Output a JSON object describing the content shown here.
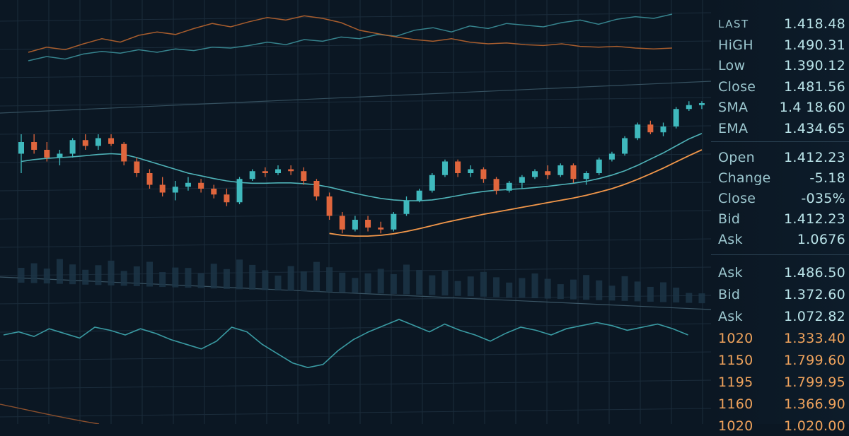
{
  "quote_panel": {
    "summary": [
      {
        "label": "LAST",
        "value": "1.418.48"
      },
      {
        "label": "HiGH",
        "value": "1.490.31"
      },
      {
        "label": "Low",
        "value": "1.390.12"
      },
      {
        "label": "Close",
        "value": "1.481.56"
      },
      {
        "label": "SMA",
        "value": "1.4 18.60"
      },
      {
        "label": "EMA",
        "value": "1.434.65"
      }
    ],
    "stats": [
      {
        "label": "Open",
        "value": "1.412.23"
      },
      {
        "label": "Change",
        "value": "-5.18"
      },
      {
        "label": "Close",
        "value": "-035%"
      },
      {
        "label": "Bid",
        "value": "1.412.23"
      },
      {
        "label": "Ask",
        "value": "1.0676"
      }
    ],
    "book": [
      {
        "label": "Ask",
        "value": "1.486.50"
      },
      {
        "label": "Bid",
        "value": "1.372.60"
      },
      {
        "label": "Ask",
        "value": "1.072.82"
      },
      {
        "label": "1020",
        "value": "1.333.40"
      },
      {
        "label": "1150",
        "value": "1.799.60"
      },
      {
        "label": "1195",
        "value": "1.799.95"
      },
      {
        "label": "1160",
        "value": "1.366.90"
      },
      {
        "label": "1020",
        "value": "1.020.00"
      }
    ]
  },
  "colors": {
    "background": "#0b1723",
    "up": "#3fb9bd",
    "down": "#e0663d",
    "sma": "#4fb3b8",
    "ema": "#f2974a",
    "grid": "#1b2c3b",
    "label_teal": "#9cc7cf",
    "value_teal": "#b9e3e8",
    "label_orange": "#f0a35c"
  },
  "chart_data": {
    "type": "candlestick",
    "title": "",
    "xlabel": "",
    "ylabel": "",
    "grid": true,
    "candles": [
      {
        "o": 1.5,
        "h": 2.0,
        "l": 1.0,
        "c": 1.8
      },
      {
        "o": 1.8,
        "h": 2.0,
        "l": 1.5,
        "c": 1.6
      },
      {
        "o": 1.6,
        "h": 1.8,
        "l": 1.3,
        "c": 1.4
      },
      {
        "o": 1.4,
        "h": 1.6,
        "l": 1.2,
        "c": 1.5
      },
      {
        "o": 1.5,
        "h": 1.9,
        "l": 1.4,
        "c": 1.85
      },
      {
        "o": 1.85,
        "h": 2.0,
        "l": 1.6,
        "c": 1.7
      },
      {
        "o": 1.7,
        "h": 2.0,
        "l": 1.6,
        "c": 1.9
      },
      {
        "o": 1.9,
        "h": 2.0,
        "l": 1.7,
        "c": 1.75
      },
      {
        "o": 1.75,
        "h": 1.8,
        "l": 1.2,
        "c": 1.3
      },
      {
        "o": 1.3,
        "h": 1.4,
        "l": 0.9,
        "c": 1.0
      },
      {
        "o": 1.0,
        "h": 1.1,
        "l": 0.6,
        "c": 0.7
      },
      {
        "o": 0.7,
        "h": 0.9,
        "l": 0.4,
        "c": 0.5
      },
      {
        "o": 0.5,
        "h": 0.8,
        "l": 0.3,
        "c": 0.65
      },
      {
        "o": 0.65,
        "h": 0.9,
        "l": 0.55,
        "c": 0.75
      },
      {
        "o": 0.75,
        "h": 0.85,
        "l": 0.5,
        "c": 0.6
      },
      {
        "o": 0.6,
        "h": 0.7,
        "l": 0.35,
        "c": 0.45
      },
      {
        "o": 0.45,
        "h": 0.6,
        "l": 0.15,
        "c": 0.25
      },
      {
        "o": 0.25,
        "h": 0.9,
        "l": 0.2,
        "c": 0.85
      },
      {
        "o": 0.85,
        "h": 1.1,
        "l": 0.8,
        "c": 1.05
      },
      {
        "o": 1.05,
        "h": 1.15,
        "l": 0.9,
        "c": 1.0
      },
      {
        "o": 1.0,
        "h": 1.2,
        "l": 0.95,
        "c": 1.1
      },
      {
        "o": 1.1,
        "h": 1.2,
        "l": 0.95,
        "c": 1.05
      },
      {
        "o": 1.05,
        "h": 1.15,
        "l": 0.7,
        "c": 0.8
      },
      {
        "o": 0.8,
        "h": 0.85,
        "l": 0.3,
        "c": 0.4
      },
      {
        "o": 0.4,
        "h": 0.5,
        "l": -0.2,
        "c": -0.1
      },
      {
        "o": -0.1,
        "h": 0.0,
        "l": -0.55,
        "c": -0.45
      },
      {
        "o": -0.45,
        "h": -0.1,
        "l": -0.5,
        "c": -0.2
      },
      {
        "o": -0.2,
        "h": -0.1,
        "l": -0.5,
        "c": -0.4
      },
      {
        "o": -0.4,
        "h": -0.25,
        "l": -0.55,
        "c": -0.45
      },
      {
        "o": -0.45,
        "h": 0.0,
        "l": -0.5,
        "c": -0.05
      },
      {
        "o": -0.05,
        "h": 0.4,
        "l": -0.1,
        "c": 0.3
      },
      {
        "o": 0.3,
        "h": 0.6,
        "l": 0.25,
        "c": 0.55
      },
      {
        "o": 0.55,
        "h": 1.0,
        "l": 0.5,
        "c": 0.95
      },
      {
        "o": 0.95,
        "h": 1.35,
        "l": 0.9,
        "c": 1.3
      },
      {
        "o": 1.3,
        "h": 1.35,
        "l": 0.9,
        "c": 1.0
      },
      {
        "o": 1.0,
        "h": 1.2,
        "l": 0.9,
        "c": 1.1
      },
      {
        "o": 1.1,
        "h": 1.15,
        "l": 0.75,
        "c": 0.85
      },
      {
        "o": 0.85,
        "h": 0.9,
        "l": 0.45,
        "c": 0.55
      },
      {
        "o": 0.55,
        "h": 0.8,
        "l": 0.5,
        "c": 0.75
      },
      {
        "o": 0.75,
        "h": 0.95,
        "l": 0.6,
        "c": 0.9
      },
      {
        "o": 0.9,
        "h": 1.1,
        "l": 0.85,
        "c": 1.05
      },
      {
        "o": 1.05,
        "h": 1.2,
        "l": 0.85,
        "c": 0.95
      },
      {
        "o": 0.95,
        "h": 1.25,
        "l": 0.9,
        "c": 1.2
      },
      {
        "o": 1.2,
        "h": 1.25,
        "l": 0.75,
        "c": 0.85
      },
      {
        "o": 0.85,
        "h": 1.05,
        "l": 0.7,
        "c": 1.0
      },
      {
        "o": 1.0,
        "h": 1.4,
        "l": 0.95,
        "c": 1.35
      },
      {
        "o": 1.35,
        "h": 1.55,
        "l": 1.3,
        "c": 1.5
      },
      {
        "o": 1.5,
        "h": 1.95,
        "l": 1.45,
        "c": 1.9
      },
      {
        "o": 1.9,
        "h": 2.3,
        "l": 1.85,
        "c": 2.25
      },
      {
        "o": 2.25,
        "h": 2.35,
        "l": 2.0,
        "c": 2.05
      },
      {
        "o": 2.05,
        "h": 2.3,
        "l": 1.95,
        "c": 2.2
      },
      {
        "o": 2.2,
        "h": 2.7,
        "l": 2.15,
        "c": 2.65
      },
      {
        "o": 2.65,
        "h": 2.85,
        "l": 2.6,
        "c": 2.75
      },
      {
        "o": 2.75,
        "h": 2.85,
        "l": 2.65,
        "c": 2.8
      }
    ],
    "sma": [
      1.3,
      1.35,
      1.38,
      1.4,
      1.42,
      1.45,
      1.48,
      1.5,
      1.48,
      1.4,
      1.3,
      1.2,
      1.1,
      1.0,
      0.93,
      0.86,
      0.8,
      0.76,
      0.74,
      0.74,
      0.75,
      0.75,
      0.73,
      0.7,
      0.64,
      0.56,
      0.48,
      0.41,
      0.35,
      0.31,
      0.29,
      0.29,
      0.31,
      0.36,
      0.42,
      0.48,
      0.53,
      0.56,
      0.58,
      0.6,
      0.63,
      0.66,
      0.7,
      0.74,
      0.79,
      0.86,
      0.95,
      1.06,
      1.2,
      1.36,
      1.52,
      1.7,
      1.88,
      2.02
    ],
    "ema": [
      null,
      null,
      null,
      null,
      null,
      null,
      null,
      null,
      null,
      null,
      null,
      null,
      null,
      null,
      null,
      null,
      null,
      null,
      null,
      null,
      null,
      null,
      null,
      null,
      -0.55,
      -0.6,
      -0.62,
      -0.62,
      -0.6,
      -0.56,
      -0.5,
      -0.43,
      -0.35,
      -0.27,
      -0.2,
      -0.13,
      -0.06,
      0.0,
      0.06,
      0.12,
      0.18,
      0.24,
      0.3,
      0.36,
      0.43,
      0.51,
      0.6,
      0.71,
      0.84,
      0.98,
      1.13,
      1.29,
      1.45,
      1.6
    ],
    "volume": [
      3,
      4,
      3,
      5,
      4,
      3,
      4,
      5,
      3,
      4,
      5,
      3,
      4,
      4,
      3,
      5,
      4,
      6,
      5,
      4,
      3,
      5,
      4,
      6,
      5,
      4,
      3,
      4,
      5,
      4,
      6,
      5,
      4,
      5,
      3,
      4,
      5,
      4,
      3,
      4,
      5,
      4,
      3,
      4,
      5,
      4,
      3,
      5,
      4,
      3,
      4,
      3,
      2,
      2
    ],
    "upper_lines": [
      {
        "color": "teal",
        "values": [
          2,
          2.5,
          2.2,
          2.8,
          3.1,
          2.9,
          3.3,
          3.0,
          3.4,
          3.2,
          3.6,
          3.5,
          3.8,
          4.2,
          3.9,
          4.5,
          4.3,
          4.8,
          4.6,
          5.1,
          4.9,
          5.6,
          5.9,
          5.4,
          6.1,
          5.8,
          6.4,
          6.2,
          6.0,
          6.5,
          6.8,
          6.3,
          6.9,
          7.2,
          7.0,
          7.5
        ]
      },
      {
        "color": "orange",
        "values": [
          3,
          3.6,
          3.3,
          4.0,
          4.6,
          4.2,
          5.0,
          5.4,
          5.1,
          5.8,
          6.4,
          6.0,
          6.6,
          7.1,
          6.8,
          7.3,
          7.0,
          6.5,
          5.6,
          5.2,
          4.8,
          4.5,
          4.3,
          4.6,
          4.2,
          4.0,
          4.1,
          3.9,
          3.8,
          4.0,
          3.7,
          3.6,
          3.7,
          3.5,
          3.4,
          3.5
        ]
      }
    ],
    "lower_line": [
      3,
      3.2,
      2.9,
      3.4,
      3.1,
      2.8,
      3.5,
      3.3,
      3.0,
      3.4,
      3.1,
      2.7,
      2.4,
      2.1,
      2.6,
      3.5,
      3.2,
      2.4,
      1.8,
      1.2,
      0.9,
      1.1,
      2.0,
      2.7,
      3.2,
      3.6,
      4.0,
      3.6,
      3.2,
      3.7,
      3.3,
      3.0,
      2.6,
      3.1,
      3.5,
      3.3,
      3.0,
      3.4,
      3.6,
      3.8,
      3.6,
      3.3,
      3.5,
      3.7,
      3.4,
      3.0
    ]
  }
}
